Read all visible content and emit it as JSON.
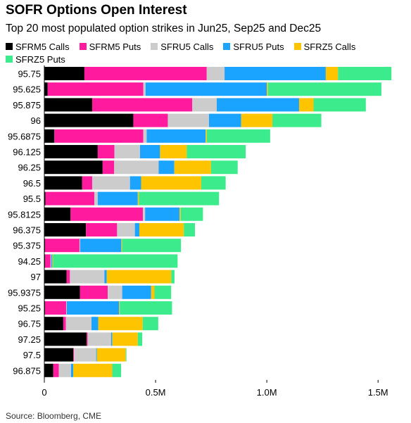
{
  "header": {
    "title": "SOFR Options Open Interest",
    "subtitle": "Top 20 most populated option strikes in Jun25, Sep25 and Dec25"
  },
  "footer": {
    "source": "Source: Bloomberg, CME"
  },
  "chart_data": {
    "type": "bar",
    "orientation": "horizontal",
    "stacked": true,
    "title": "SOFR Options Open Interest",
    "subtitle": "Top 20 most populated option strikes in Jun25, Sep25 and Dec25",
    "xlim": [
      0,
      1550000
    ],
    "xticks": [
      0,
      500000,
      1000000,
      1500000
    ],
    "xtick_labels": [
      "0",
      "0.5M",
      "1.0M",
      "1.5M"
    ],
    "grid": false,
    "legend_position": "top-left",
    "categories": [
      "95.75",
      "95.625",
      "95.875",
      "96",
      "95.6875",
      "96.125",
      "96.25",
      "96.5",
      "95.5",
      "95.8125",
      "96.375",
      "95.375",
      "94.25",
      "97",
      "95.9375",
      "95.25",
      "96.75",
      "97.25",
      "97.5",
      "96.875"
    ],
    "series": [
      {
        "name": "SFRM5 Calls",
        "color": "#000000",
        "values": [
          180000,
          15000,
          215000,
          400000,
          45000,
          240000,
          262000,
          170000,
          5000,
          118000,
          187000,
          3000,
          3000,
          100000,
          160000,
          3000,
          85000,
          190000,
          130000,
          40000
        ]
      },
      {
        "name": "SFRM5 Puts",
        "color": "#ff1a9e",
        "values": [
          550000,
          430000,
          450000,
          155000,
          400000,
          75000,
          52000,
          45000,
          220000,
          325000,
          140000,
          155000,
          25000,
          15000,
          125000,
          95000,
          12000,
          5000,
          3000,
          25000
        ]
      },
      {
        "name": "SFRU5 Calls",
        "color": "#cccccc",
        "values": [
          80000,
          10000,
          110000,
          185000,
          15000,
          115000,
          200000,
          170000,
          15000,
          10000,
          80000,
          3000,
          3000,
          155000,
          65000,
          3000,
          115000,
          105000,
          100000,
          55000
        ]
      },
      {
        "name": "SFRU5 Puts",
        "color": "#1aa3ff",
        "values": [
          455000,
          545000,
          370000,
          145000,
          265000,
          90000,
          70000,
          50000,
          180000,
          155000,
          20000,
          185000,
          5000,
          10000,
          130000,
          235000,
          30000,
          5000,
          3000,
          10000
        ]
      },
      {
        "name": "SFRZ5 Calls",
        "color": "#ffc400",
        "values": [
          55000,
          5000,
          65000,
          140000,
          5000,
          120000,
          165000,
          270000,
          5000,
          5000,
          200000,
          3000,
          3000,
          290000,
          15000,
          3000,
          200000,
          115000,
          130000,
          175000
        ]
      },
      {
        "name": "SFRZ5 Puts",
        "color": "#3ceb8c",
        "values": [
          240000,
          510000,
          235000,
          220000,
          285000,
          265000,
          120000,
          110000,
          360000,
          100000,
          50000,
          265000,
          560000,
          15000,
          75000,
          235000,
          70000,
          20000,
          3000,
          40000
        ]
      }
    ]
  }
}
